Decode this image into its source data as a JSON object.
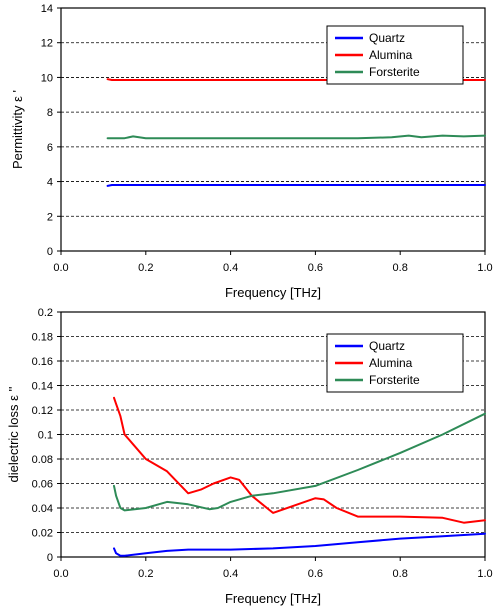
{
  "chart_data": [
    {
      "type": "line",
      "xlabel": "Frequency [THz]",
      "ylabel": "Permittivity  ε '",
      "xlim": [
        0,
        1.0
      ],
      "ylim": [
        0,
        14
      ],
      "xticks": [
        0.0,
        0.2,
        0.4,
        0.6,
        0.8,
        1.0
      ],
      "xtick_labels": [
        "0.0",
        "0.2",
        "0.4",
        "0.6",
        "0.8",
        "1.0"
      ],
      "yticks": [
        0,
        2,
        4,
        6,
        8,
        10,
        12,
        14
      ],
      "ytick_labels": [
        "0",
        "2",
        "4",
        "6",
        "8",
        "10",
        "12",
        "14"
      ],
      "grid": "horizontal-dashed",
      "legend_position": "top-right",
      "series": [
        {
          "name": "Quartz",
          "color": "#0000ff",
          "x": [
            0.11,
            0.12,
            0.15,
            0.2,
            0.3,
            0.4,
            0.5,
            0.6,
            0.7,
            0.8,
            0.9,
            1.0
          ],
          "y": [
            3.75,
            3.8,
            3.8,
            3.8,
            3.8,
            3.8,
            3.8,
            3.8,
            3.8,
            3.8,
            3.8,
            3.8
          ]
        },
        {
          "name": "Alumina",
          "color": "#ff0000",
          "x": [
            0.11,
            0.12,
            0.15,
            0.2,
            0.3,
            0.4,
            0.5,
            0.6,
            0.7,
            0.8,
            0.9,
            1.0
          ],
          "y": [
            9.9,
            9.85,
            9.85,
            9.85,
            9.85,
            9.85,
            9.85,
            9.85,
            9.85,
            9.85,
            9.85,
            9.85
          ]
        },
        {
          "name": "Forsterite",
          "color": "#2e8b57",
          "x": [
            0.11,
            0.12,
            0.15,
            0.17,
            0.2,
            0.3,
            0.4,
            0.5,
            0.6,
            0.7,
            0.78,
            0.82,
            0.85,
            0.9,
            0.95,
            1.0
          ],
          "y": [
            6.5,
            6.5,
            6.5,
            6.6,
            6.5,
            6.5,
            6.5,
            6.5,
            6.5,
            6.5,
            6.55,
            6.65,
            6.55,
            6.65,
            6.6,
            6.65
          ]
        }
      ]
    },
    {
      "type": "line",
      "xlabel": "Frequency [THz]",
      "ylabel": "dielectric loss  ε ''",
      "xlim": [
        0,
        1.0
      ],
      "ylim": [
        0,
        0.2
      ],
      "xticks": [
        0.0,
        0.2,
        0.4,
        0.6,
        0.8,
        1.0
      ],
      "xtick_labels": [
        "0.0",
        "0.2",
        "0.4",
        "0.6",
        "0.8",
        "1.0"
      ],
      "yticks": [
        0,
        0.02,
        0.04,
        0.06,
        0.08,
        0.1,
        0.12,
        0.14,
        0.16,
        0.18,
        0.2
      ],
      "ytick_labels": [
        "0",
        "0.02",
        "0.04",
        "0.06",
        "0.08",
        "0.1",
        "0.12",
        "0.14",
        "0.16",
        "0.18",
        "0.2"
      ],
      "grid": "horizontal-dashed",
      "legend_position": "top-right",
      "series": [
        {
          "name": "Quartz",
          "color": "#0000ff",
          "x": [
            0.125,
            0.13,
            0.14,
            0.15,
            0.2,
            0.25,
            0.3,
            0.35,
            0.4,
            0.5,
            0.6,
            0.7,
            0.8,
            0.9,
            1.0
          ],
          "y": [
            0.007,
            0.003,
            0.001,
            0.001,
            0.003,
            0.005,
            0.006,
            0.006,
            0.006,
            0.007,
            0.009,
            0.012,
            0.015,
            0.017,
            0.019
          ]
        },
        {
          "name": "Alumina",
          "color": "#ff0000",
          "x": [
            0.125,
            0.13,
            0.14,
            0.15,
            0.17,
            0.2,
            0.25,
            0.3,
            0.33,
            0.36,
            0.4,
            0.42,
            0.45,
            0.5,
            0.55,
            0.6,
            0.62,
            0.65,
            0.7,
            0.8,
            0.9,
            0.95,
            1.0
          ],
          "y": [
            0.13,
            0.125,
            0.115,
            0.1,
            0.092,
            0.08,
            0.07,
            0.052,
            0.055,
            0.06,
            0.065,
            0.063,
            0.05,
            0.036,
            0.042,
            0.048,
            0.047,
            0.04,
            0.033,
            0.033,
            0.032,
            0.028,
            0.03
          ]
        },
        {
          "name": "Forsterite",
          "color": "#2e8b57",
          "x": [
            0.125,
            0.13,
            0.14,
            0.15,
            0.2,
            0.25,
            0.3,
            0.35,
            0.37,
            0.4,
            0.45,
            0.5,
            0.6,
            0.7,
            0.8,
            0.9,
            1.0
          ],
          "y": [
            0.058,
            0.05,
            0.04,
            0.038,
            0.04,
            0.045,
            0.043,
            0.039,
            0.04,
            0.045,
            0.05,
            0.052,
            0.058,
            0.071,
            0.085,
            0.1,
            0.117
          ]
        }
      ]
    }
  ]
}
